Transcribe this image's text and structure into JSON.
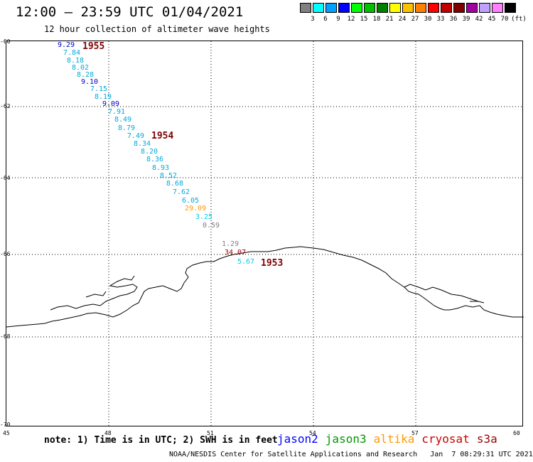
{
  "title": "12:00 – 23:59 UTC 01/04/2021",
  "subtitle": "12 hour collection of altimeter wave heights",
  "colorbar": {
    "unit": "(ft)",
    "swatches": [
      "#808080",
      "#00ffff",
      "#00a0ff",
      "#0000ff",
      "#00ff00",
      "#00c000",
      "#008000",
      "#ffff00",
      "#ffc000",
      "#ff8000",
      "#ff0000",
      "#c00000",
      "#800000",
      "#a000a0",
      "#c0a0ff",
      "#ff80ff",
      "#000000"
    ],
    "labels": [
      "3",
      "6",
      "9",
      "12",
      "15",
      "18",
      "21",
      "24",
      "27",
      "30",
      "33",
      "36",
      "39",
      "42",
      "45",
      "70"
    ]
  },
  "axes": {
    "lat_labels": [
      "-60",
      "-62",
      "-64",
      "-66",
      "-68",
      "-70"
    ],
    "lon_labels": [
      "45",
      "48",
      "51",
      "54",
      "57",
      "60"
    ]
  },
  "measurements": [
    {
      "value": "9.29",
      "color": "#0000cc"
    },
    {
      "value": "7.84",
      "color": "#00aadd"
    },
    {
      "value": "8.18",
      "color": "#00aadd"
    },
    {
      "value": "8.02",
      "color": "#00aadd"
    },
    {
      "value": "8.28",
      "color": "#00aadd"
    },
    {
      "value": "9.10",
      "color": "#0000cc"
    },
    {
      "value": "7.15",
      "color": "#00aadd"
    },
    {
      "value": "8.19",
      "color": "#00aadd"
    },
    {
      "value": "9.09",
      "color": "#0000cc"
    },
    {
      "value": "7.91",
      "color": "#00aadd"
    },
    {
      "value": "8.49",
      "color": "#00aadd"
    },
    {
      "value": "8.79",
      "color": "#00aadd"
    },
    {
      "value": "7.49",
      "color": "#00aadd"
    },
    {
      "value": "8.34",
      "color": "#00aadd"
    },
    {
      "value": "8.20",
      "color": "#00aadd"
    },
    {
      "value": "8.36",
      "color": "#00aadd"
    },
    {
      "value": "8.93",
      "color": "#00aadd"
    },
    {
      "value": "8.52",
      "color": "#00aadd"
    },
    {
      "value": "8.68",
      "color": "#00aadd"
    },
    {
      "value": "7.62",
      "color": "#00aadd"
    },
    {
      "value": "6.05",
      "color": "#00aadd"
    },
    {
      "value": "29.09",
      "color": "#ff9900"
    },
    {
      "value": "3.25",
      "color": "#00ccee"
    },
    {
      "value": "0.59",
      "color": "#808080"
    },
    {
      "value": "1.29",
      "color": "#808080"
    },
    {
      "value": "34.07",
      "color": "#990000"
    },
    {
      "value": "5.67",
      "color": "#00ccee"
    }
  ],
  "pass_times": [
    "1955",
    "1954",
    "1953"
  ],
  "note": "note: 1) Time is in UTC; 2) SWH is in feet",
  "satellites": [
    {
      "name": "jason2",
      "color": "#0000ff"
    },
    {
      "name": "jason3",
      "color": "#009900"
    },
    {
      "name": "altika",
      "color": "#ff9900"
    },
    {
      "name": "cryosat",
      "color": "#cc0000"
    },
    {
      "name": "s3a",
      "color": "#990000"
    }
  ],
  "credit": "NOAA/NESDIS Center for Satellite Applications and Research   Jan  7 08:29:31 UTC 2021"
}
